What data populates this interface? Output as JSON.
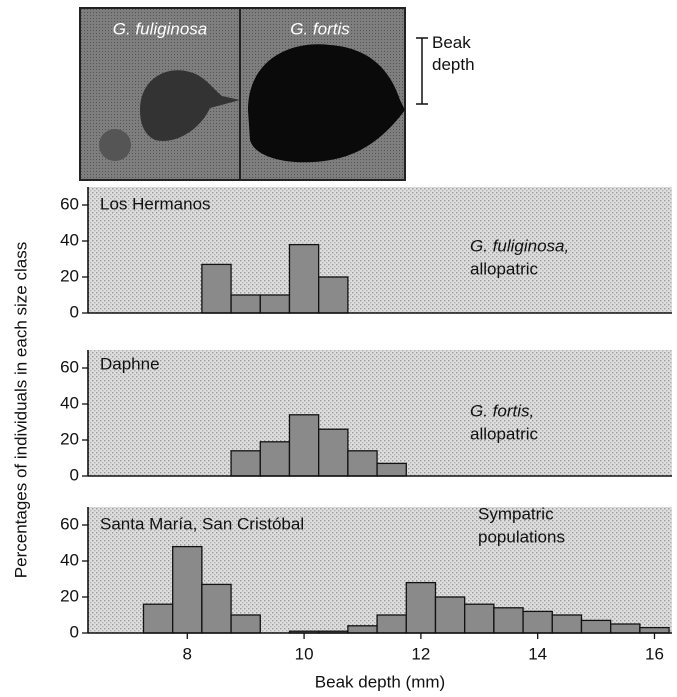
{
  "illustration": {
    "labels": [
      "G. fuliginosa",
      "G. fortis"
    ],
    "annotation": "Beak depth"
  },
  "chart_data": [
    {
      "type": "histogram",
      "title": "Los Hermanos",
      "annotation": [
        "G. fuliginosa,",
        "allopatric"
      ],
      "annotation_italic_first": true,
      "bins": [
        8.25,
        8.75,
        9.25,
        9.75,
        10.25,
        10.75
      ],
      "values": [
        27,
        10,
        10,
        38,
        20
      ],
      "color": "#8a8a8a",
      "xlim": [
        6.3,
        16.3
      ],
      "ylim": [
        0,
        70
      ],
      "yticks": [
        0,
        20,
        40,
        60
      ]
    },
    {
      "type": "histogram",
      "title": "Daphne",
      "annotation": [
        "G. fortis,",
        "allopatric"
      ],
      "annotation_italic_first": true,
      "ylabel": "Percentages of individuals in each size class",
      "bins": [
        8.75,
        9.25,
        9.75,
        10.25,
        10.75,
        11.25,
        11.75
      ],
      "values": [
        14,
        19,
        34,
        26,
        14,
        7
      ],
      "color": "#8a8a8a",
      "xlim": [
        6.3,
        16.3
      ],
      "ylim": [
        0,
        70
      ],
      "yticks": [
        0,
        20,
        40,
        60
      ]
    },
    {
      "type": "histogram",
      "title": "Santa María, San Cristóbal",
      "annotation": [
        "Sympatric",
        "populations"
      ],
      "annotation_italic_first": false,
      "xlabel": "Beak depth (mm)",
      "bins": [
        7.25,
        7.75,
        8.25,
        8.75,
        9.25,
        9.75,
        10.25,
        10.75,
        11.25,
        11.75,
        12.25,
        12.75,
        13.25,
        13.75,
        14.25,
        14.75,
        15.25,
        15.75,
        16.25
      ],
      "values": [
        16,
        48,
        27,
        10,
        0,
        1,
        1,
        4,
        10,
        28,
        20,
        16,
        14,
        12,
        10,
        7,
        5,
        3
      ],
      "color": "#8a8a8a",
      "xlim": [
        6.3,
        16.3
      ],
      "ylim": [
        0,
        70
      ],
      "yticks": [
        0,
        20,
        40,
        60
      ],
      "xticks": [
        8,
        10,
        12,
        14,
        16
      ]
    }
  ]
}
